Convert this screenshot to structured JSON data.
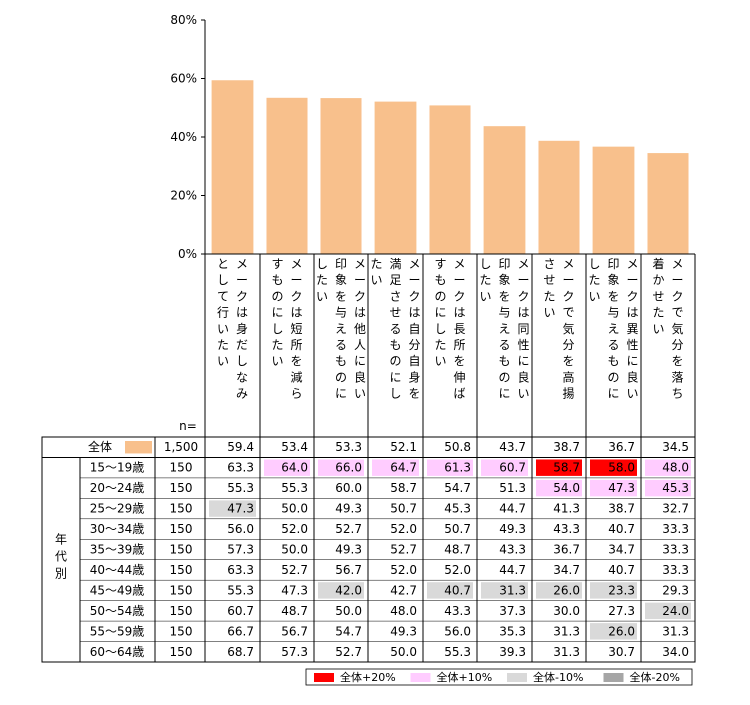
{
  "chart_data": {
    "type": "bar",
    "title": "",
    "xlabel": "",
    "ylabel": "",
    "ylim": [
      0,
      80
    ],
    "yticks": [
      "0%",
      "20%",
      "40%",
      "60%",
      "80%"
    ],
    "bar_color": "#f8c08c",
    "categories": [
      [
        "メークは身だしなみ",
        "として行いたい"
      ],
      [
        "メークは短所を減ら",
        "すものにしたい"
      ],
      [
        "メークは他人に良い",
        "印象を与えるものに",
        "したい"
      ],
      [
        "メークは自分自身を",
        "満足させるものにし",
        "たい"
      ],
      [
        "メークは長所を伸ば",
        "すものにしたい"
      ],
      [
        "メークは同性に良い",
        "印象を与えるものに",
        "したい"
      ],
      [
        "メークで気分を高揚",
        "させたい"
      ],
      [
        "メークは異性に良い",
        "印象を与えるものに",
        "したい"
      ],
      [
        "メークで気分を落ち",
        "着かせたい"
      ]
    ],
    "values": [
      59.4,
      53.4,
      53.3,
      52.1,
      50.8,
      43.7,
      38.7,
      36.7,
      34.5
    ],
    "table": {
      "n_header": "n=",
      "total": {
        "label": "全体",
        "n": "1,500",
        "values": [
          "59.4",
          "53.4",
          "53.3",
          "52.1",
          "50.8",
          "43.7",
          "38.7",
          "36.7",
          "34.5"
        ]
      },
      "group_label": "年代別",
      "rows": [
        {
          "label": "15～19歳",
          "n": "150",
          "values": [
            "63.3",
            "64.0",
            "66.0",
            "64.7",
            "61.3",
            "60.7",
            "58.7",
            "58.0",
            "48.0"
          ]
        },
        {
          "label": "20～24歳",
          "n": "150",
          "values": [
            "55.3",
            "55.3",
            "60.0",
            "58.7",
            "54.7",
            "51.3",
            "54.0",
            "47.3",
            "45.3"
          ]
        },
        {
          "label": "25～29歳",
          "n": "150",
          "values": [
            "47.3",
            "50.0",
            "49.3",
            "50.7",
            "45.3",
            "44.7",
            "41.3",
            "38.7",
            "32.7"
          ]
        },
        {
          "label": "30～34歳",
          "n": "150",
          "values": [
            "56.0",
            "52.0",
            "52.7",
            "52.0",
            "50.7",
            "49.3",
            "43.3",
            "40.7",
            "33.3"
          ]
        },
        {
          "label": "35～39歳",
          "n": "150",
          "values": [
            "57.3",
            "50.0",
            "49.3",
            "52.7",
            "48.7",
            "43.3",
            "36.7",
            "34.7",
            "33.3"
          ]
        },
        {
          "label": "40～44歳",
          "n": "150",
          "values": [
            "63.3",
            "52.7",
            "56.7",
            "52.0",
            "52.0",
            "44.7",
            "34.7",
            "40.7",
            "33.3"
          ]
        },
        {
          "label": "45～49歳",
          "n": "150",
          "values": [
            "55.3",
            "47.3",
            "42.0",
            "42.7",
            "40.7",
            "31.3",
            "26.0",
            "23.3",
            "29.3"
          ]
        },
        {
          "label": "50～54歳",
          "n": "150",
          "values": [
            "60.7",
            "48.7",
            "50.0",
            "48.0",
            "43.3",
            "37.3",
            "30.0",
            "27.3",
            "24.0"
          ]
        },
        {
          "label": "55～59歳",
          "n": "150",
          "values": [
            "66.7",
            "56.7",
            "54.7",
            "49.3",
            "56.0",
            "35.3",
            "31.3",
            "26.0",
            "31.3"
          ]
        },
        {
          "label": "60～64歳",
          "n": "150",
          "values": [
            "68.7",
            "57.3",
            "52.7",
            "50.0",
            "55.3",
            "39.3",
            "31.3",
            "30.7",
            "34.0"
          ]
        }
      ],
      "highlight_thresholds": {
        "plus20": 20,
        "plus10": 10,
        "minus10": -10,
        "minus20": -20
      }
    },
    "legend": [
      {
        "label": "全体+20%",
        "color": "#ff0000"
      },
      {
        "label": "全体+10%",
        "color": "#ffccff"
      },
      {
        "label": "全体-10%",
        "color": "#d9d9d9"
      },
      {
        "label": "全体-20%",
        "color": "#a6a6a6"
      }
    ]
  }
}
